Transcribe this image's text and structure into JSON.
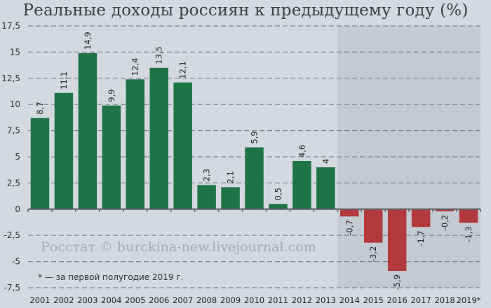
{
  "title": "Реальные доходы россиян к предыдущему году (%)",
  "watermark": "Росстат © burckina-new.livejournal.com",
  "footnote": "* — за первой полугодие 2019 г.",
  "colors": {
    "background": "#d3d9df",
    "shaded_region": "#c3cad1",
    "positive_bar": "#1e7446",
    "negative_bar": "#b23a3c",
    "grid": "#7f858b",
    "axis": "#5a5f64"
  },
  "chart_data": {
    "type": "bar",
    "title": "Реальные доходы россиян к предыдущему году (%)",
    "xlabel": "",
    "ylabel": "",
    "categories": [
      "2001",
      "2002",
      "2003",
      "2004",
      "2005",
      "2006",
      "2007",
      "2008",
      "2009",
      "2010",
      "2011",
      "2012",
      "2013",
      "2014",
      "2015",
      "2016",
      "2017",
      "2018",
      "2019*"
    ],
    "values": [
      8.7,
      11.1,
      14.9,
      9.9,
      12.4,
      13.5,
      12.1,
      2.3,
      2.1,
      5.9,
      0.5,
      4.6,
      4,
      -0.7,
      -3.2,
      -5.9,
      -1.7,
      -0.2,
      -1.3
    ],
    "data_labels": [
      "8,7",
      "11,1",
      "14,9",
      "9,9",
      "12,4",
      "13,5",
      "12,1",
      "2,3",
      "2,1",
      "5,9",
      "0,5",
      "4,6",
      "4",
      "-0,7",
      "-3,2",
      "-5,9",
      "-1,7",
      "-0,2",
      "-1,3"
    ],
    "ylim": [
      -7.5,
      17.5
    ],
    "yticks": [
      17.5,
      15,
      12.5,
      10,
      7.5,
      5,
      2.5,
      0,
      -2.5,
      -5,
      -7.5
    ],
    "ytick_labels": [
      "17,5",
      "15",
      "12,5",
      "10",
      "7,5",
      "5",
      "2,5",
      "0",
      "-2,5",
      "-5",
      "-7,5"
    ],
    "grid": "horizontal dashed",
    "legend": null,
    "shaded_from_category": "2014",
    "annotations": [
      "Росстат © burckina-new.livejournal.com",
      "* — за первой полугодие 2019 г."
    ]
  }
}
